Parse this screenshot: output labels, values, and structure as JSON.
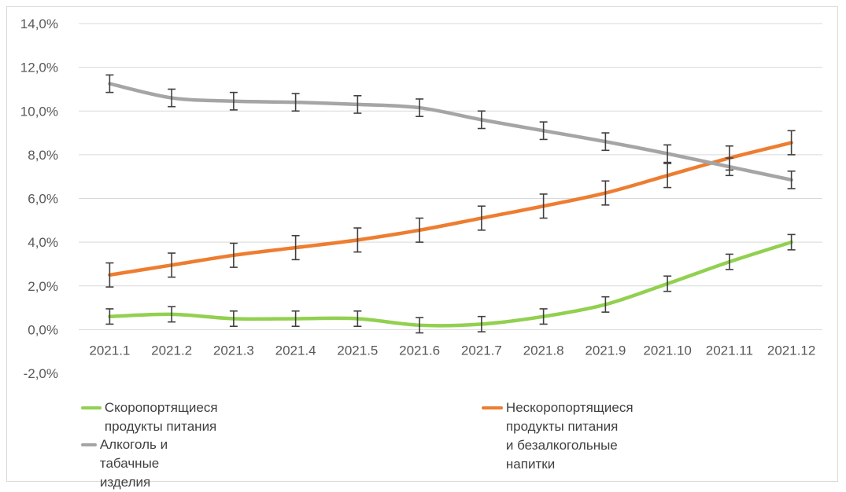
{
  "chart_data": {
    "type": "line",
    "categories": [
      "2021.1",
      "2021.2",
      "2021.3",
      "2021.4",
      "2021.5",
      "2021.6",
      "2021.7",
      "2021.8",
      "2021.9",
      "2021.10",
      "2021.11",
      "2021.12"
    ],
    "y_ticks": [
      "-2,0%",
      "0,0%",
      "2,0%",
      "4,0%",
      "6,0%",
      "8,0%",
      "10,0%",
      "12,0%",
      "14,0%"
    ],
    "ylim": [
      -2,
      14
    ],
    "y_unit": "%",
    "grid": true,
    "legend_position": "bottom",
    "series": [
      {
        "name": "Скоропортящиеся продукты питания",
        "color": "#92d050",
        "values": [
          0.6,
          0.7,
          0.5,
          0.5,
          0.5,
          0.2,
          0.25,
          0.6,
          1.15,
          2.1,
          3.1,
          4.0
        ],
        "error": [
          0.35,
          0.35,
          0.35,
          0.35,
          0.35,
          0.35,
          0.35,
          0.35,
          0.35,
          0.35,
          0.35,
          0.35
        ]
      },
      {
        "name": "Нескоропортящиеся продукты питания и безалкогольные напитки",
        "name_lines": [
          "Нескоропортящиеся продукты питания",
          "и безалкогольные напитки"
        ],
        "color": "#ed7d31",
        "values": [
          2.5,
          2.95,
          3.4,
          3.75,
          4.1,
          4.55,
          5.1,
          5.65,
          6.25,
          7.05,
          7.85,
          8.55
        ],
        "error": [
          0.55,
          0.55,
          0.55,
          0.55,
          0.55,
          0.55,
          0.55,
          0.55,
          0.55,
          0.55,
          0.55,
          0.55
        ]
      },
      {
        "name": "Алкоголь и табачные изделия",
        "color": "#a5a5a5",
        "values": [
          11.25,
          10.6,
          10.45,
          10.4,
          10.3,
          10.15,
          9.6,
          9.1,
          8.6,
          8.05,
          7.45,
          6.85
        ],
        "error": [
          0.4,
          0.4,
          0.4,
          0.4,
          0.4,
          0.4,
          0.4,
          0.4,
          0.4,
          0.4,
          0.4,
          0.4
        ]
      }
    ]
  }
}
